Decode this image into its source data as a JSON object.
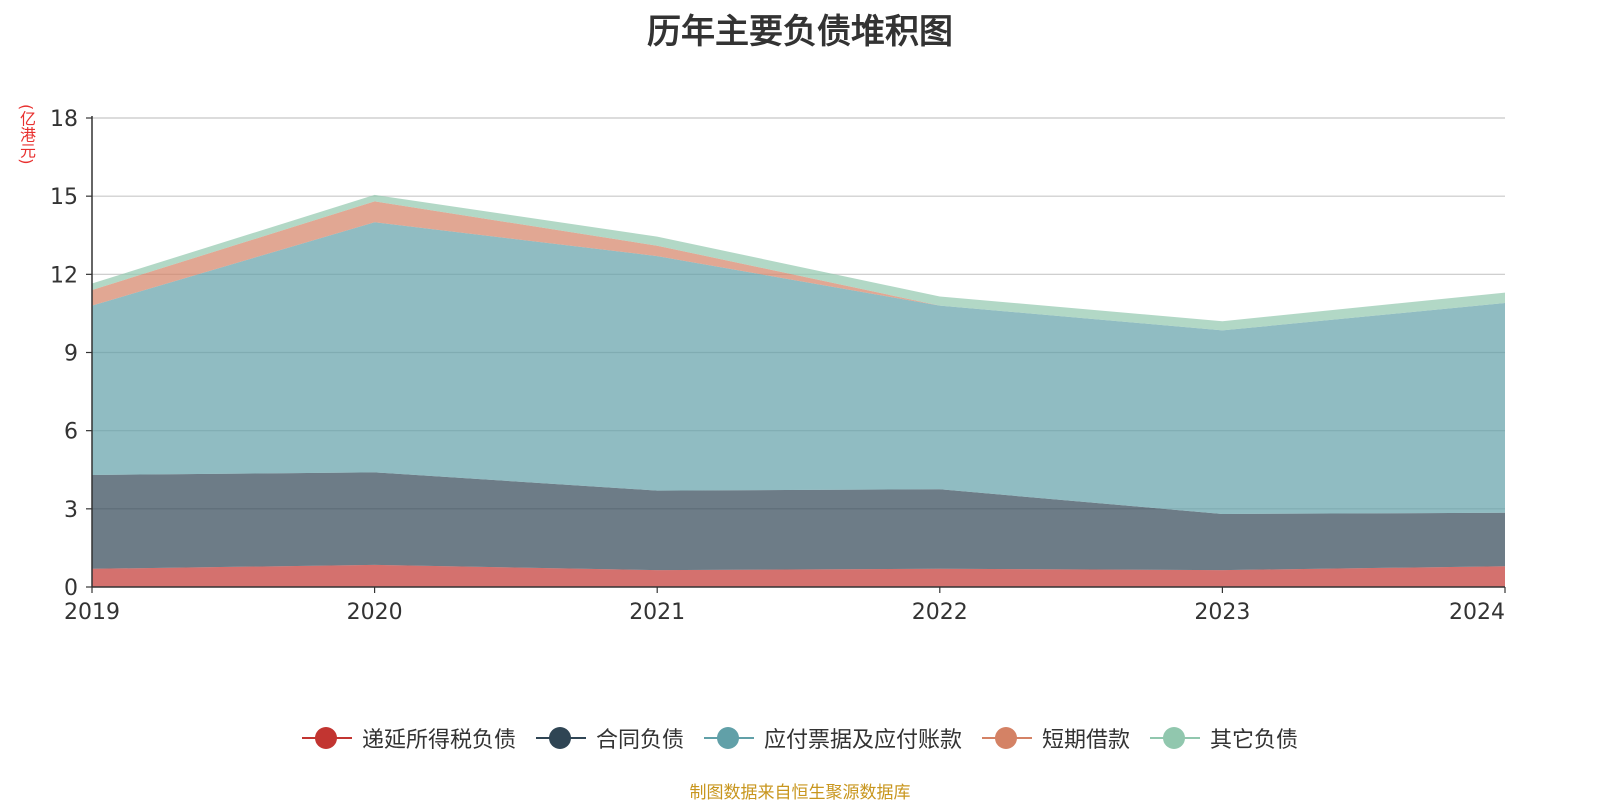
{
  "chart_data": {
    "type": "area",
    "stacked": true,
    "title": "历年主要负债堆积图",
    "ylabel": "(亿港元)",
    "ylim": [
      0,
      18
    ],
    "yticks": [
      0,
      3,
      6,
      9,
      12,
      15,
      18
    ],
    "categories": [
      "2019",
      "2020",
      "2021",
      "2022",
      "2023",
      "2024"
    ],
    "grid": true,
    "legend_position": "bottom",
    "series": [
      {
        "name": "递延所得税负债",
        "color": "#c23531",
        "values": [
          0.7,
          0.85,
          0.65,
          0.7,
          0.65,
          0.8
        ]
      },
      {
        "name": "合同负债",
        "color": "#2f4554",
        "values": [
          3.6,
          3.55,
          3.05,
          3.05,
          2.15,
          2.05
        ]
      },
      {
        "name": "应付票据及应付账款",
        "color": "#61a0a8",
        "values": [
          6.5,
          9.6,
          9.0,
          7.05,
          7.05,
          8.05
        ]
      },
      {
        "name": "短期借款",
        "color": "#d48265",
        "values": [
          0.6,
          0.8,
          0.4,
          0.0,
          0.0,
          0.0
        ]
      },
      {
        "name": "其它负债",
        "color": "#91c7ae",
        "values": [
          0.25,
          0.25,
          0.35,
          0.35,
          0.35,
          0.4
        ]
      }
    ]
  },
  "source_note": "制图数据来自恒生聚源数据库"
}
